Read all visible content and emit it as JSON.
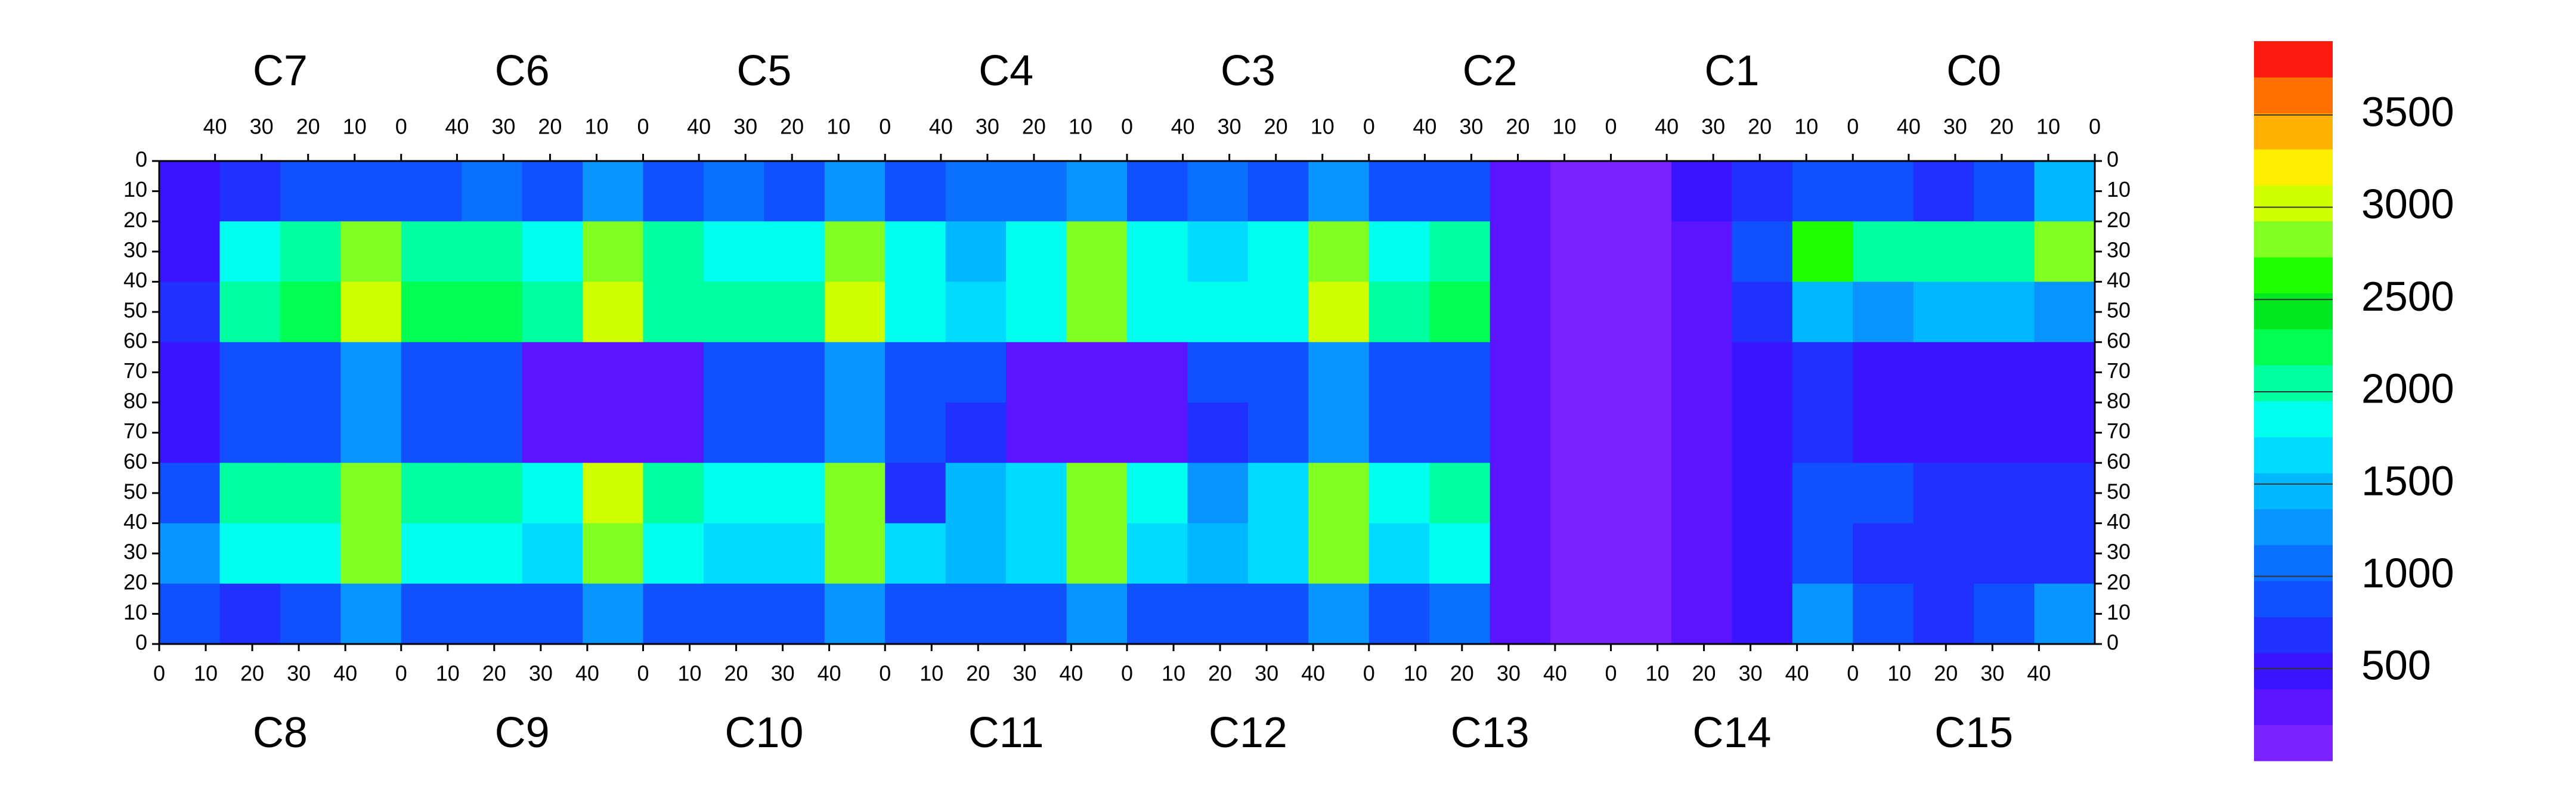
{
  "chart_data": {
    "type": "heatmap",
    "top_chips": [
      "C7",
      "C6",
      "C5",
      "C4",
      "C3",
      "C2",
      "C1",
      "C0"
    ],
    "bottom_chips": [
      "C8",
      "C9",
      "C10",
      "C11",
      "C12",
      "C13",
      "C14",
      "C15"
    ],
    "chip_xlim": [
      0,
      52
    ],
    "xticks": [
      0,
      10,
      20,
      30,
      40
    ],
    "top_reversed": true,
    "ylim": [
      0,
      80
    ],
    "yticks": [
      0,
      10,
      20,
      30,
      40,
      50,
      60,
      70,
      80
    ],
    "values": [
      [
        400,
        700,
        800,
        900,
        900,
        1000,
        900,
        1200,
        900,
        1000,
        900,
        1200,
        900,
        1000,
        1000,
        1200,
        900,
        1000,
        900,
        1200,
        800,
        900,
        200,
        150,
        150,
        400,
        700,
        900,
        800,
        700,
        800,
        1500
      ],
      [
        500,
        1800,
        2000,
        2800,
        2100,
        2000,
        1900,
        2900,
        2000,
        1800,
        1900,
        2900,
        1900,
        1500,
        1800,
        2900,
        1800,
        1700,
        1900,
        2800,
        1900,
        2000,
        300,
        120,
        120,
        300,
        900,
        2600,
        2000,
        2100,
        2100,
        2900
      ],
      [
        600,
        2100,
        2300,
        3000,
        2300,
        2200,
        2100,
        3000,
        2100,
        2000,
        2000,
        3000,
        1900,
        1700,
        1800,
        2900,
        1900,
        1900,
        1800,
        3000,
        2000,
        2200,
        250,
        120,
        120,
        250,
        600,
        1500,
        1300,
        1400,
        1400,
        1300
      ],
      [
        500,
        900,
        900,
        1200,
        900,
        900,
        300,
        300,
        300,
        900,
        900,
        1200,
        900,
        900,
        300,
        300,
        300,
        800,
        900,
        1200,
        900,
        900,
        200,
        120,
        120,
        200,
        400,
        700,
        500,
        500,
        500,
        500
      ],
      [
        500,
        800,
        800,
        1200,
        900,
        800,
        300,
        300,
        300,
        800,
        800,
        1200,
        900,
        700,
        300,
        300,
        300,
        700,
        900,
        1200,
        900,
        800,
        200,
        120,
        120,
        200,
        400,
        600,
        500,
        500,
        500,
        500
      ],
      [
        800,
        2000,
        2100,
        2900,
        2100,
        2000,
        1900,
        3000,
        2000,
        1900,
        1900,
        2900,
        700,
        1500,
        1700,
        2800,
        1800,
        1300,
        1700,
        2800,
        1800,
        2000,
        250,
        120,
        120,
        300,
        500,
        900,
        800,
        700,
        700,
        700
      ],
      [
        1200,
        1900,
        1800,
        2800,
        1800,
        1800,
        1700,
        2900,
        1800,
        1700,
        1700,
        2800,
        1600,
        1500,
        1600,
        2800,
        1600,
        1500,
        1600,
        2800,
        1700,
        1800,
        250,
        120,
        120,
        250,
        500,
        800,
        700,
        600,
        600,
        600
      ],
      [
        900,
        600,
        800,
        1300,
        900,
        900,
        800,
        1300,
        900,
        900,
        900,
        1300,
        900,
        900,
        900,
        1300,
        900,
        800,
        800,
        1300,
        900,
        1000,
        200,
        120,
        120,
        200,
        500,
        1300,
        800,
        700,
        800,
        1200
      ]
    ],
    "colorbar": {
      "zlim": [
        0,
        3900
      ],
      "zticks": [
        500,
        1000,
        1500,
        2000,
        2500,
        3000,
        3500
      ],
      "colors": [
        "#7a22ff",
        "#5a14ff",
        "#3a14ff",
        "#2030ff",
        "#1050ff",
        "#0a70ff",
        "#0a94ff",
        "#00b8ff",
        "#00dcff",
        "#00ffee",
        "#00ffa0",
        "#00ff50",
        "#00e820",
        "#20ff00",
        "#80ff20",
        "#d0ff00",
        "#ffee00",
        "#ffb000",
        "#ff7000",
        "#ff1a10"
      ]
    }
  }
}
